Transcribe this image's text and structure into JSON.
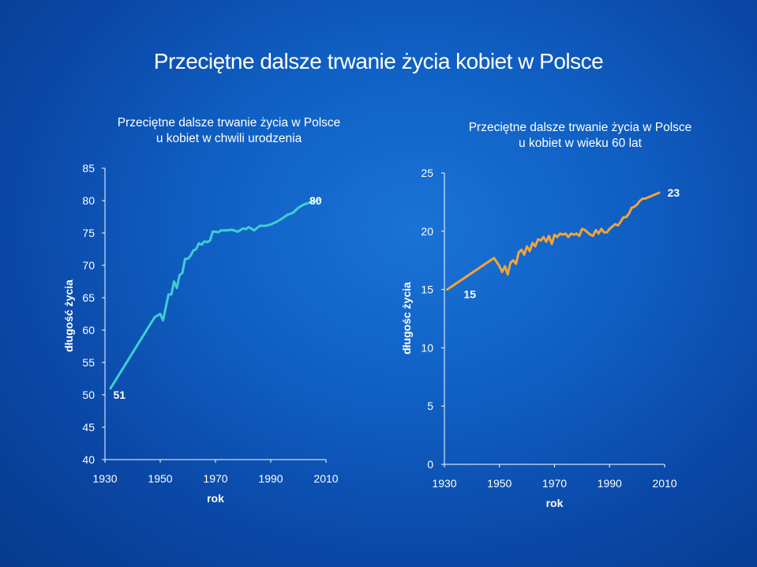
{
  "slide": {
    "title": "Przeciętne dalsze trwanie życia kobiet w Polsce"
  },
  "colors": {
    "background": "#0d55b8",
    "line1": "#3ecfcf",
    "line2": "#f0a43a",
    "axis": "#ffffff"
  },
  "chart_data": [
    {
      "type": "line",
      "title_lines": [
        "Przeciętne dalsze trwanie życia w Polsce",
        "u kobiet w chwili urodzenia"
      ],
      "xlabel": "rok",
      "ylabel": "długość życia",
      "xlim": [
        1930,
        2010
      ],
      "ylim": [
        40,
        85
      ],
      "x_ticks": [
        "1930",
        "1950",
        "1970",
        "1990",
        "2010"
      ],
      "y_ticks": [
        "40",
        "45",
        "50",
        "55",
        "60",
        "65",
        "70",
        "75",
        "80",
        "85"
      ],
      "annotations": [
        {
          "text": "51",
          "x": 1933,
          "y": 50
        },
        {
          "text": "80",
          "x": 2004,
          "y": 80
        }
      ],
      "series": [
        {
          "color": "#3ecfcf",
          "x": [
            1932,
            1948,
            1950,
            1951,
            1953,
            1954,
            1955,
            1956,
            1957,
            1958,
            1959,
            1960,
            1961,
            1962,
            1963,
            1964,
            1965,
            1966,
            1967,
            1968,
            1969,
            1970,
            1971,
            1972,
            1974,
            1976,
            1978,
            1980,
            1981,
            1982,
            1984,
            1986,
            1988,
            1990,
            1992,
            1994,
            1996,
            1998,
            2000,
            2002,
            2004,
            2006,
            2008
          ],
          "y": [
            51,
            62,
            62.5,
            61.5,
            65.5,
            65.5,
            67.5,
            66.5,
            68.5,
            68.8,
            71,
            71,
            71.5,
            72.3,
            72.5,
            73.4,
            73.2,
            73.7,
            73.6,
            73.8,
            75.2,
            75.2,
            75.1,
            75.4,
            75.4,
            75.5,
            75.2,
            75.7,
            75.6,
            75.9,
            75.4,
            76.1,
            76.1,
            76.3,
            76.7,
            77.2,
            77.8,
            78.1,
            78.9,
            79.4,
            79.7,
            79.9,
            80.2
          ]
        }
      ]
    },
    {
      "type": "line",
      "title_lines": [
        "Przeciętne dalsze trwanie życia w Polsce",
        "u kobiet w wieku 60 lat"
      ],
      "xlabel": "rok",
      "ylabel": "długośc życia",
      "xlim": [
        1930,
        2010
      ],
      "ylim": [
        0,
        25
      ],
      "x_ticks": [
        "1930",
        "1950",
        "1970",
        "1990",
        "2010"
      ],
      "y_ticks": [
        "0",
        "5",
        "10",
        "15",
        "20",
        "25"
      ],
      "annotations": [
        {
          "text": "15",
          "x": 1937,
          "y": 14.6
        },
        {
          "text": "23",
          "x": 2011,
          "y": 23.3
        }
      ],
      "series": [
        {
          "color": "#f0a43a",
          "x": [
            1931,
            1948,
            1950,
            1951,
            1952,
            1953,
            1954,
            1955,
            1956,
            1957,
            1958,
            1959,
            1960,
            1961,
            1962,
            1963,
            1964,
            1965,
            1966,
            1967,
            1968,
            1969,
            1970,
            1971,
            1972,
            1973,
            1974,
            1975,
            1976,
            1977,
            1978,
            1979,
            1980,
            1981,
            1982,
            1983,
            1984,
            1985,
            1986,
            1987,
            1988,
            1989,
            1990,
            1991,
            1992,
            1993,
            1994,
            1995,
            1996,
            1997,
            1998,
            1999,
            2000,
            2001,
            2002,
            2003,
            2004,
            2005,
            2006,
            2007,
            2008
          ],
          "y": [
            15,
            17.7,
            17,
            16.5,
            17,
            16.3,
            17.3,
            17.5,
            17.2,
            18.2,
            18.4,
            18,
            18.7,
            18.3,
            19,
            18.7,
            19.3,
            19.2,
            19.5,
            19.1,
            19.6,
            18.9,
            19.7,
            19.5,
            19.8,
            19.7,
            19.8,
            19.5,
            19.8,
            19.7,
            19.8,
            19.6,
            20.2,
            20.1,
            19.9,
            19.7,
            19.6,
            20.1,
            19.8,
            20.2,
            19.9,
            19.9,
            20.2,
            20.4,
            20.6,
            20.5,
            20.8,
            21.2,
            21.2,
            21.5,
            22,
            22.1,
            22.3,
            22.6,
            22.8,
            22.8,
            22.9,
            23,
            23.1,
            23.2,
            23.3
          ]
        }
      ]
    }
  ]
}
